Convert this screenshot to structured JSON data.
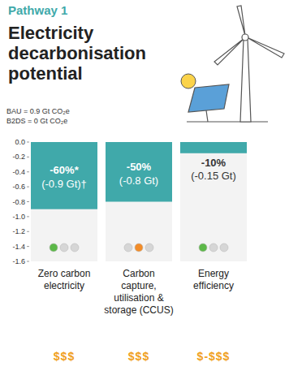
{
  "chart_data": {
    "type": "bar",
    "subtitle": "Pathway 1",
    "title": "Electricity decarbonisation potential",
    "annotations": [
      "BAU = 0.9 Gt CO₂e",
      "B2DS = 0 Gt CO₂e"
    ],
    "categories": [
      "Zero carbon electricity",
      "Carbon capture, utilisation & storage (CCUS)",
      "Energy efficiency"
    ],
    "values": [
      -0.9,
      -0.8,
      -0.15
    ],
    "value_labels": [
      "(-0.9 Gt)†",
      "(-0.8 Gt)",
      "(-0.15 Gt)"
    ],
    "share_labels": [
      "-60%*",
      "-50%",
      "-10%"
    ],
    "feasibility": [
      {
        "lit": 0,
        "color": "#5cb848"
      },
      {
        "lit": 1,
        "color": "#f28c28"
      },
      {
        "lit": 0,
        "color": "#5cb848"
      }
    ],
    "costs": [
      "$$$",
      "$$$",
      "$-$$$"
    ],
    "color": "#40a9aa",
    "ylim": [
      -1.6,
      0
    ],
    "yticks": [
      {
        "value": 0,
        "label": "0.0"
      },
      -0.2,
      -0.4,
      -0.6,
      -0.8,
      {
        "value": -1,
        "label": "-1.0"
      },
      -1.2,
      -1.4,
      -1.6
    ],
    "data_labels": true,
    "grid": false
  }
}
